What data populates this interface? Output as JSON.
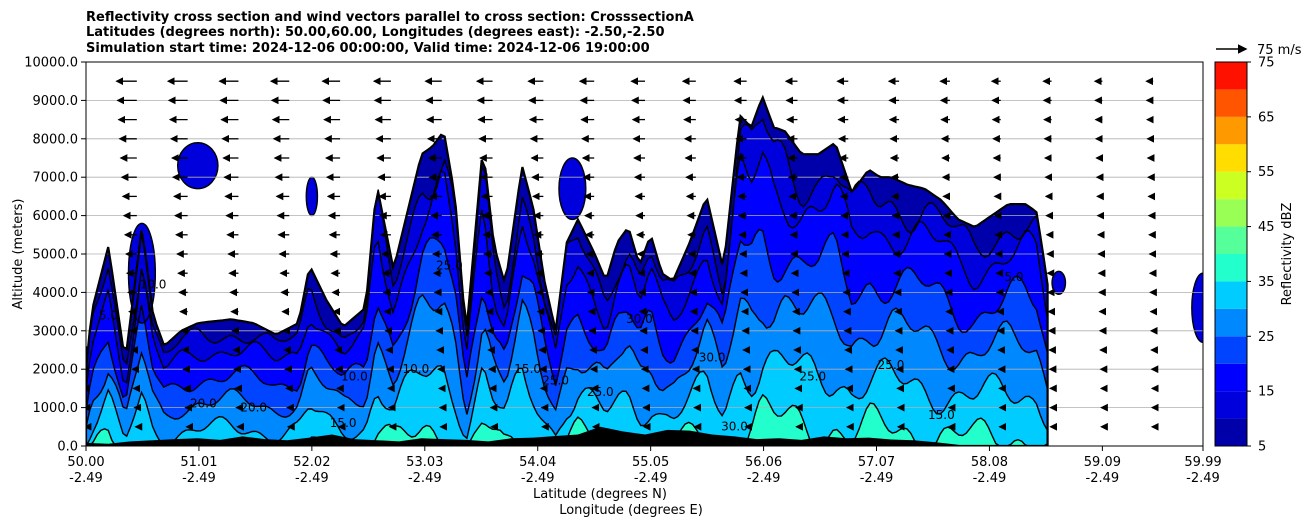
{
  "chart_data": {
    "type": "contour",
    "title_lines": [
      "Reflectivity cross section and wind vectors parallel to cross section: CrosssectionA",
      "Latitudes (degrees north): 50.00,60.00, Longitudes (degrees east): -2.50,-2.50",
      "Simulation start time: 2024-12-06 00:00:00, Valid time: 2024-12-06 19:00:00"
    ],
    "ylabel": "Altitude (meters)",
    "xlabel_lines": [
      "Latitude (degrees N)",
      "Longitude (degrees E)"
    ],
    "ylim": [
      0,
      10000
    ],
    "xlim": [
      50.0,
      59.99
    ],
    "yticks": [
      "0.0",
      "1000.0",
      "2000.0",
      "3000.0",
      "4000.0",
      "5000.0",
      "6000.0",
      "7000.0",
      "8000.0",
      "9000.0",
      "10000.0"
    ],
    "xticks": [
      {
        "lat": "50.00",
        "lon": "-2.49"
      },
      {
        "lat": "51.01",
        "lon": "-2.49"
      },
      {
        "lat": "52.02",
        "lon": "-2.49"
      },
      {
        "lat": "53.03",
        "lon": "-2.49"
      },
      {
        "lat": "54.04",
        "lon": "-2.49"
      },
      {
        "lat": "55.05",
        "lon": "-2.49"
      },
      {
        "lat": "56.06",
        "lon": "-2.49"
      },
      {
        "lat": "57.07",
        "lon": "-2.49"
      },
      {
        "lat": "58.08",
        "lon": "-2.49"
      },
      {
        "lat": "59.09",
        "lon": "-2.49"
      },
      {
        "lat": "59.99",
        "lon": "-2.49"
      }
    ],
    "grid": "horizontal",
    "colorbar": {
      "label": "Reflectivity dBZ",
      "levels": [
        5,
        10,
        15,
        20,
        25,
        30,
        35,
        40,
        45,
        50,
        55,
        60,
        65,
        70,
        75
      ],
      "ticks": [
        "5",
        "15",
        "25",
        "35",
        "45",
        "55",
        "65",
        "75"
      ],
      "colors": [
        "#0000aa",
        "#0000dd",
        "#0000ff",
        "#0044ff",
        "#0088ff",
        "#00ccff",
        "#22ffcc",
        "#55ff99",
        "#99ff55",
        "#ccff22",
        "#ffdd00",
        "#ff9900",
        "#ff5500",
        "#ff1100",
        "#aa0000"
      ]
    },
    "wind_key_label": "75 m/s",
    "contour_labels": [
      "5.0",
      "10.0",
      "15.0",
      "20.0",
      "25.0",
      "30.0"
    ],
    "profile_x": [
      50.0,
      50.05,
      50.2,
      50.35,
      50.5,
      50.6,
      50.7,
      50.85,
      51.0,
      51.15,
      51.3,
      51.5,
      51.7,
      51.9,
      52.0,
      52.15,
      52.3,
      52.5,
      52.6,
      52.75,
      52.9,
      53.0,
      53.1,
      53.2,
      53.3,
      53.4,
      53.55,
      53.65,
      53.75,
      53.9,
      54.0,
      54.1,
      54.2,
      54.3,
      54.4,
      54.55,
      54.65,
      54.75,
      54.85,
      54.95,
      55.05,
      55.15,
      55.25,
      55.4,
      55.55,
      55.7,
      55.85,
      55.95,
      56.05,
      56.15,
      56.25,
      56.4,
      56.55,
      56.7,
      56.85,
      57.0,
      57.1,
      57.2,
      57.35,
      57.5,
      57.65,
      57.8,
      57.95,
      58.1,
      58.25,
      58.4,
      58.5,
      58.55,
      58.6
    ],
    "profile_top": [
      2000,
      3500,
      5200,
      2200,
      5700,
      3400,
      2600,
      3000,
      3200,
      3250,
      3300,
      3200,
      2900,
      3200,
      4700,
      3800,
      3100,
      3600,
      6800,
      4600,
      6400,
      7600,
      7800,
      8200,
      6500,
      2900,
      7800,
      5200,
      4200,
      7300,
      6200,
      4300,
      3000,
      5300,
      5900,
      5000,
      4300,
      5300,
      5700,
      4700,
      5500,
      4500,
      4300,
      5300,
      6500,
      4600,
      8600,
      8300,
      9100,
      8300,
      8200,
      7600,
      7600,
      7900,
      6600,
      7200,
      7000,
      7000,
      6800,
      6700,
      6400,
      5900,
      5700,
      6000,
      6300,
      6300,
      6100,
      5200,
      4200
    ],
    "ground_x": [
      50.0,
      50.2,
      50.4,
      50.6,
      50.8,
      51.0,
      51.2,
      51.4,
      51.6,
      51.8,
      52.0,
      52.2,
      52.4,
      52.6,
      52.8,
      53.0,
      53.2,
      53.4,
      53.6,
      53.8,
      54.0,
      54.2,
      54.4,
      54.6,
      54.8,
      55.0,
      55.2,
      55.4,
      55.6,
      55.8,
      56.0,
      56.2,
      56.4,
      56.6,
      56.8,
      57.0,
      57.2,
      57.4,
      57.6,
      57.8
    ],
    "ground_z": [
      80,
      60,
      120,
      150,
      180,
      200,
      160,
      250,
      180,
      150,
      220,
      300,
      180,
      150,
      120,
      200,
      180,
      160,
      120,
      200,
      220,
      260,
      300,
      500,
      380,
      300,
      420,
      400,
      300,
      250,
      180,
      200,
      160,
      250,
      200,
      220,
      170,
      150,
      100,
      30
    ]
  }
}
